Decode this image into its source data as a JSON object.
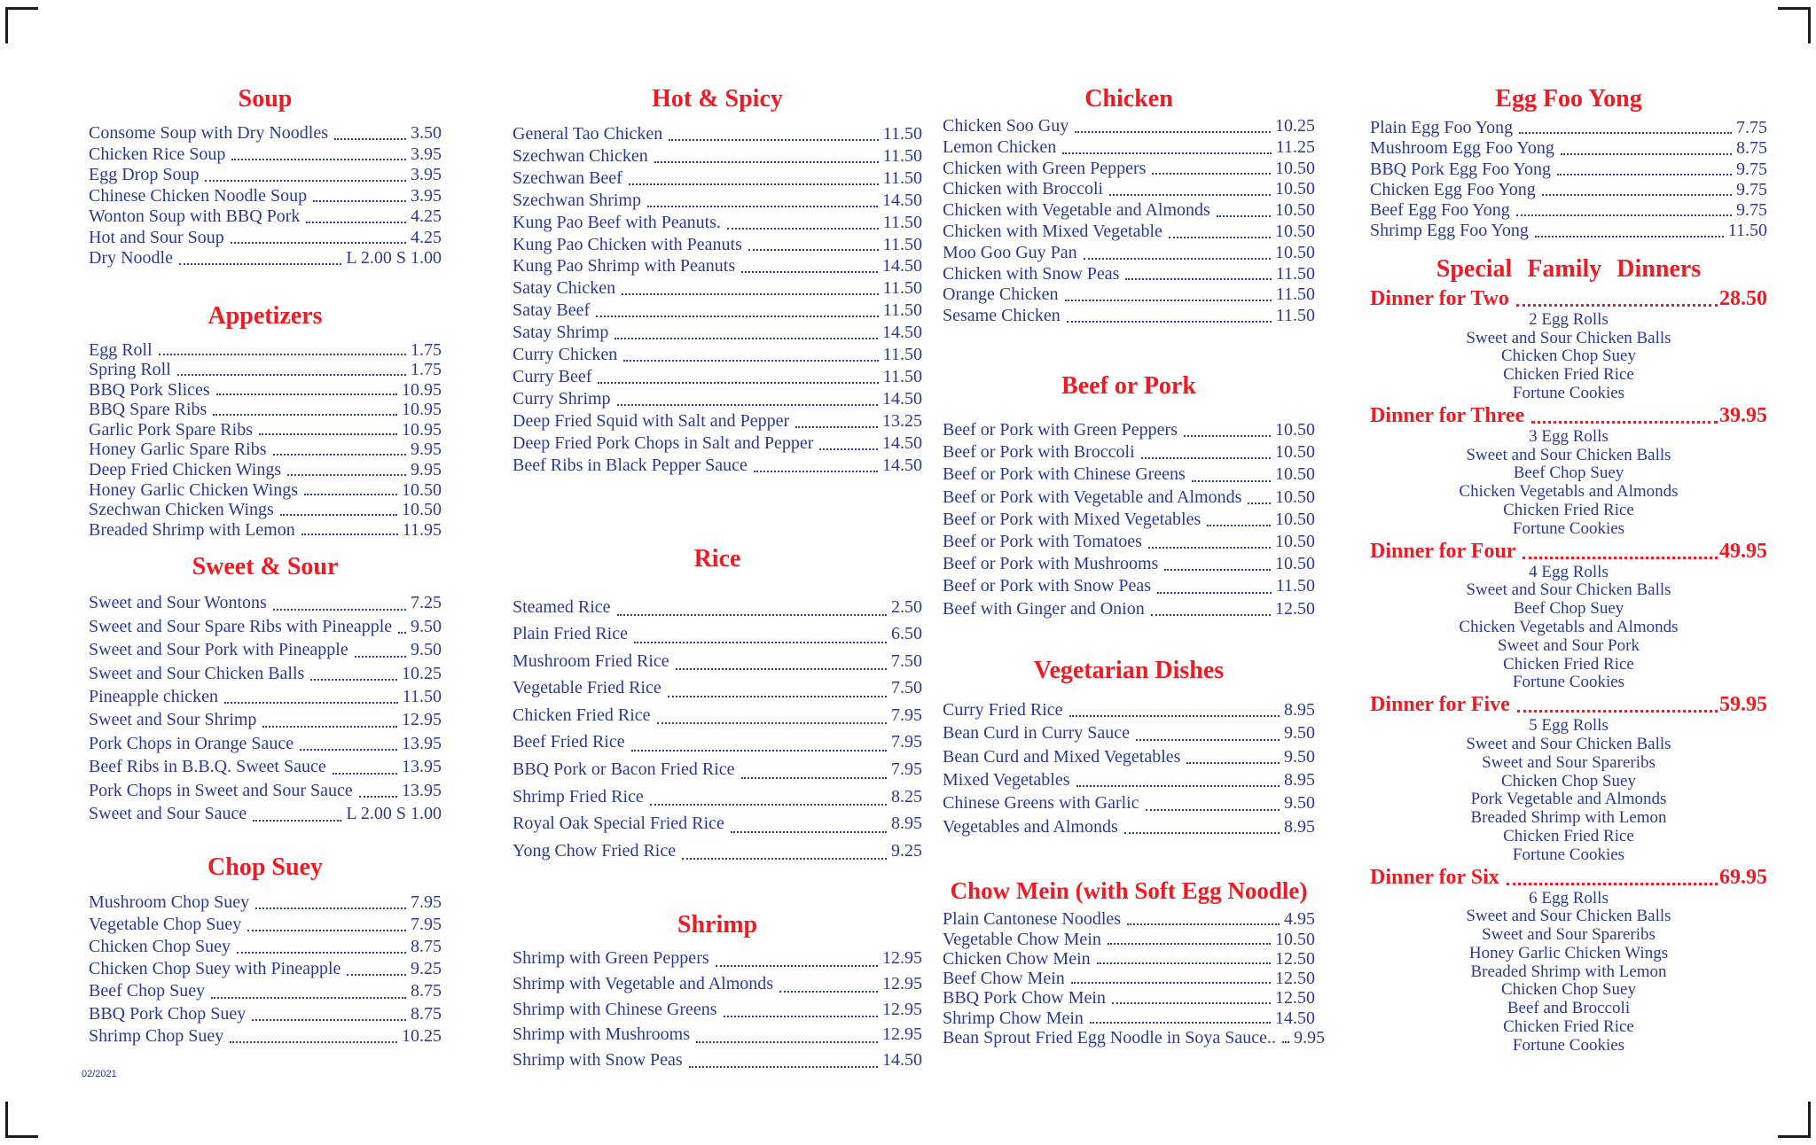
{
  "page": {
    "date_code": "02/2021",
    "colors": {
      "heading_red": "#ed1c24",
      "item_blue": "#2b3a92"
    }
  },
  "columns": [
    {
      "sections": [
        {
          "title": "Soup",
          "items": [
            {
              "name": "Consome Soup with Dry Noodles",
              "price": "3.50"
            },
            {
              "name": "Chicken Rice Soup",
              "price": "3.95"
            },
            {
              "name": "Egg Drop Soup",
              "price": "3.95"
            },
            {
              "name": "Chinese Chicken Noodle Soup",
              "price": "3.95"
            },
            {
              "name": "Wonton Soup with BBQ Pork",
              "price": "4.25"
            },
            {
              "name": "Hot and Sour Soup",
              "price": "4.25"
            },
            {
              "name": "Dry Noodle",
              "price": "L 2.00 S 1.00"
            }
          ]
        },
        {
          "title": "Appetizers",
          "items": [
            {
              "name": "Egg Roll",
              "price": "1.75"
            },
            {
              "name": "Spring Roll",
              "price": "1.75"
            },
            {
              "name": "BBQ Pork Slices",
              "price": "10.95"
            },
            {
              "name": "BBQ Spare Ribs",
              "price": "10.95"
            },
            {
              "name": "Garlic Pork Spare Ribs",
              "price": "10.95"
            },
            {
              "name": "Honey Garlic Spare Ribs",
              "price": "9.95"
            },
            {
              "name": "Deep Fried Chicken Wings",
              "price": "9.95"
            },
            {
              "name": "Honey Garlic Chicken Wings",
              "price": "10.50"
            },
            {
              "name": "Szechwan Chicken Wings",
              "price": "10.50"
            },
            {
              "name": "Breaded Shrimp with Lemon",
              "price": "11.95"
            }
          ]
        },
        {
          "title": "Sweet & Sour",
          "items": [
            {
              "name": "Sweet and Sour Wontons",
              "price": "7.25"
            },
            {
              "name": "Sweet and Sour Spare Ribs with Pineapple",
              "price": "9.50"
            },
            {
              "name": "Sweet and Sour Pork with Pineapple",
              "price": "9.50"
            },
            {
              "name": "Sweet and Sour Chicken Balls",
              "price": "10.25"
            },
            {
              "name": "Pineapple chicken",
              "price": "11.50"
            },
            {
              "name": "Sweet and Sour Shrimp",
              "price": "12.95"
            },
            {
              "name": "Pork Chops in Orange Sauce",
              "price": "13.95"
            },
            {
              "name": "Beef Ribs in B.B.Q. Sweet Sauce",
              "price": "13.95"
            },
            {
              "name": "Pork Chops in Sweet and Sour Sauce",
              "price": "13.95"
            },
            {
              "name": "Sweet and Sour Sauce",
              "price": "L 2.00 S 1.00"
            }
          ]
        },
        {
          "title": "Chop Suey",
          "items": [
            {
              "name": "Mushroom Chop Suey",
              "price": "7.95"
            },
            {
              "name": "Vegetable Chop Suey",
              "price": "7.95"
            },
            {
              "name": "Chicken Chop Suey",
              "price": "8.75"
            },
            {
              "name": "Chicken Chop Suey with Pineapple",
              "price": "9.25"
            },
            {
              "name": "Beef Chop Suey",
              "price": "8.75"
            },
            {
              "name": "BBQ Pork Chop Suey",
              "price": "8.75"
            },
            {
              "name": "Shrimp Chop Suey",
              "price": "10.25"
            }
          ]
        }
      ]
    },
    {
      "sections": [
        {
          "title": "Hot & Spicy",
          "items": [
            {
              "name": "General Tao Chicken",
              "price": "11.50"
            },
            {
              "name": "Szechwan Chicken",
              "price": "11.50"
            },
            {
              "name": "Szechwan Beef",
              "price": "11.50"
            },
            {
              "name": "Szechwan Shrimp",
              "price": "14.50"
            },
            {
              "name": "Kung Pao Beef with Peanuts.",
              "price": "11.50"
            },
            {
              "name": "Kung Pao Chicken with Peanuts",
              "price": "11.50"
            },
            {
              "name": "Kung Pao Shrimp with Peanuts",
              "price": "14.50"
            },
            {
              "name": "Satay Chicken",
              "price": "11.50"
            },
            {
              "name": "Satay Beef",
              "price": "11.50"
            },
            {
              "name": "Satay Shrimp",
              "price": "14.50"
            },
            {
              "name": "Curry Chicken",
              "price": "11.50"
            },
            {
              "name": "Curry Beef",
              "price": "11.50"
            },
            {
              "name": "Curry Shrimp",
              "price": "14.50"
            },
            {
              "name": "Deep Fried Squid with Salt and Pepper",
              "price": "13.25"
            },
            {
              "name": "Deep Fried Pork Chops in Salt and Pepper",
              "price": "14.50"
            },
            {
              "name": "Beef Ribs in Black Pepper Sauce",
              "price": "14.50"
            }
          ]
        },
        {
          "title": "Rice",
          "items": [
            {
              "name": "Steamed Rice",
              "price": "2.50"
            },
            {
              "name": "Plain Fried Rice",
              "price": "6.50"
            },
            {
              "name": "Mushroom Fried Rice",
              "price": "7.50"
            },
            {
              "name": "Vegetable Fried Rice",
              "price": "7.50"
            },
            {
              "name": "Chicken Fried Rice",
              "price": "7.95"
            },
            {
              "name": "Beef Fried Rice",
              "price": "7.95"
            },
            {
              "name": "BBQ Pork or Bacon Fried Rice",
              "price": "7.95"
            },
            {
              "name": "Shrimp Fried Rice",
              "price": "8.25"
            },
            {
              "name": "Royal Oak Special Fried Rice",
              "price": "8.95"
            },
            {
              "name": "Yong Chow Fried Rice",
              "price": "9.25"
            }
          ]
        },
        {
          "title": "Shrimp",
          "items": [
            {
              "name": "Shrimp with Green Peppers",
              "price": "12.95"
            },
            {
              "name": "Shrimp with Vegetable and Almonds",
              "price": "12.95"
            },
            {
              "name": "Shrimp with Chinese Greens",
              "price": "12.95"
            },
            {
              "name": "Shrimp with Mushrooms",
              "price": "12.95"
            },
            {
              "name": "Shrimp with Snow Peas",
              "price": "14.50"
            }
          ]
        }
      ]
    },
    {
      "sections": [
        {
          "title": "Chicken",
          "items": [
            {
              "name": "Chicken Soo Guy",
              "price": "10.25"
            },
            {
              "name": "Lemon Chicken",
              "price": "11.25"
            },
            {
              "name": "Chicken with Green Peppers",
              "price": "10.50"
            },
            {
              "name": "Chicken with Broccoli",
              "price": "10.50"
            },
            {
              "name": "Chicken with Vegetable and Almonds",
              "price": "10.50"
            },
            {
              "name": "Chicken with Mixed Vegetable",
              "price": "10.50"
            },
            {
              "name": "Moo Goo Guy Pan",
              "price": "10.50"
            },
            {
              "name": "Chicken with Snow Peas",
              "price": "11.50"
            },
            {
              "name": "Orange Chicken",
              "price": "11.50"
            },
            {
              "name": "Sesame Chicken",
              "price": "11.50"
            }
          ]
        },
        {
          "title": "Beef or Pork",
          "items": [
            {
              "name": "Beef or Pork with Green Peppers",
              "price": "10.50"
            },
            {
              "name": "Beef or Pork with Broccoli",
              "price": "10.50"
            },
            {
              "name": "Beef or Pork with Chinese Greens",
              "price": "10.50"
            },
            {
              "name": "Beef or Pork with Vegetable and Almonds",
              "price": "10.50"
            },
            {
              "name": "Beef or Pork with Mixed Vegetables",
              "price": "10.50"
            },
            {
              "name": "Beef or Pork with Tomatoes",
              "price": "10.50"
            },
            {
              "name": "Beef or Pork with Mushrooms",
              "price": "10.50"
            },
            {
              "name": "Beef or Pork with Snow Peas",
              "price": "11.50"
            },
            {
              "name": "Beef with Ginger and Onion",
              "price": "12.50"
            }
          ]
        },
        {
          "title": "Vegetarian Dishes",
          "items": [
            {
              "name": "Curry Fried Rice",
              "price": "8.95"
            },
            {
              "name": "Bean Curd in Curry Sauce",
              "price": "9.50"
            },
            {
              "name": "Bean Curd and Mixed Vegetables",
              "price": "9.50"
            },
            {
              "name": "Mixed Vegetables",
              "price": "8.95"
            },
            {
              "name": "Chinese Greens with Garlic",
              "price": "9.50"
            },
            {
              "name": "Vegetables and Almonds",
              "price": "8.95"
            }
          ]
        },
        {
          "title": "Chow Mein (with Soft Egg Noodle)",
          "items": [
            {
              "name": "Plain Cantonese Noodles",
              "price": "4.95"
            },
            {
              "name": "Vegetable Chow Mein",
              "price": "10.50"
            },
            {
              "name": "Chicken Chow Mein",
              "price": "12.50"
            },
            {
              "name": "Beef Chow Mein",
              "price": "12.50"
            },
            {
              "name": "BBQ Pork Chow Mein",
              "price": "12.50"
            },
            {
              "name": "Shrimp Chow Mein",
              "price": "14.50"
            },
            {
              "name": "Bean Sprout Fried Egg Noodle in Soya Sauce..",
              "price": "9.95"
            }
          ]
        }
      ]
    },
    {
      "sections": [
        {
          "title": "Egg Foo Yong",
          "items": [
            {
              "name": "Plain Egg Foo Yong",
              "price": "7.75"
            },
            {
              "name": "Mushroom Egg Foo Yong",
              "price": "8.75"
            },
            {
              "name": "BBQ Pork Egg Foo Yong",
              "price": "9.75"
            },
            {
              "name": "Chicken Egg Foo Yong",
              "price": "9.75"
            },
            {
              "name": "Beef Egg Foo Yong",
              "price": "9.75"
            },
            {
              "name": "Shrimp Egg Foo Yong",
              "price": "11.50"
            }
          ]
        },
        {
          "title": "Special Family Dinners",
          "dinners": [
            {
              "name": "Dinner for Two",
              "price": "28.50",
              "includes": [
                "2 Egg Rolls",
                "Sweet and Sour Chicken Balls",
                "Chicken Chop Suey",
                "Chicken Fried Rice",
                "Fortune Cookies"
              ]
            },
            {
              "name": "Dinner for Three",
              "price": "39.95",
              "includes": [
                "3 Egg Rolls",
                "Sweet and Sour Chicken Balls",
                "Beef Chop Suey",
                "Chicken Vegetabls and Almonds",
                "Chicken Fried Rice",
                "Fortune Cookies"
              ]
            },
            {
              "name": "Dinner for Four",
              "price": "49.95",
              "includes": [
                "4 Egg Rolls",
                "Sweet and Sour Chicken Balls",
                "Beef Chop Suey",
                "Chicken Vegetabls and Almonds",
                "Sweet and Sour Pork",
                "Chicken Fried Rice",
                "Fortune Cookies"
              ]
            },
            {
              "name": "Dinner for Five",
              "price": "59.95",
              "includes": [
                "5 Egg Rolls",
                "Sweet and Sour Chicken Balls",
                "Sweet and Sour Spareribs",
                "Chicken Chop Suey",
                "Pork Vegetable and Almonds",
                "Breaded Shrimp with Lemon",
                "Chicken Fried Rice",
                "Fortune Cookies"
              ]
            },
            {
              "name": "Dinner for Six",
              "price": "69.95",
              "includes": [
                "6 Egg Rolls",
                "Sweet and Sour Chicken Balls",
                "Sweet and Sour Spareribs",
                "Honey Garlic Chicken Wings",
                "Breaded Shrimp with Lemon",
                "Chicken Chop Suey",
                "Beef and Broccoli",
                "Chicken Fried Rice",
                "Fortune Cookies"
              ]
            }
          ]
        }
      ]
    }
  ]
}
